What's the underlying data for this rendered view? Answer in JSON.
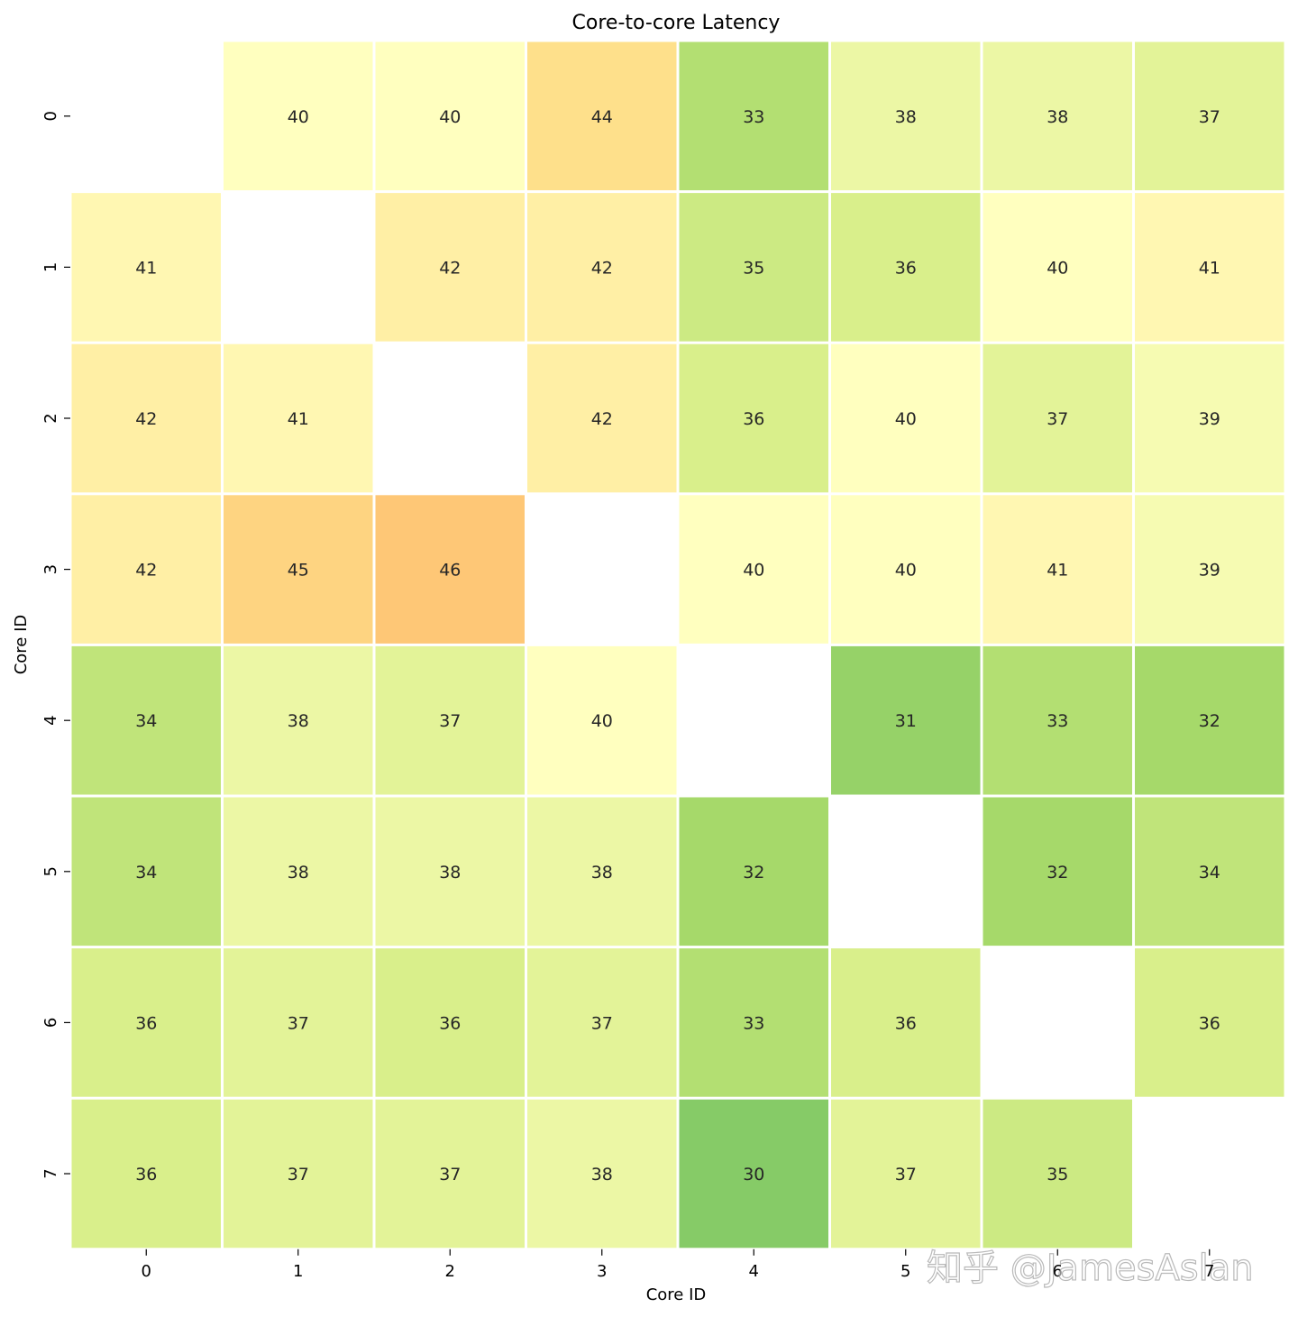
{
  "chart_data": {
    "type": "heatmap",
    "title": "Core-to-core Latency",
    "xlabel": "Core ID",
    "ylabel": "Core ID",
    "x_categories": [
      "0",
      "1",
      "2",
      "3",
      "4",
      "5",
      "6",
      "7"
    ],
    "y_categories": [
      "0",
      "1",
      "2",
      "3",
      "4",
      "5",
      "6",
      "7"
    ],
    "values": [
      [
        null,
        40,
        40,
        44,
        33,
        38,
        38,
        37
      ],
      [
        41,
        null,
        42,
        42,
        35,
        36,
        40,
        41
      ],
      [
        42,
        41,
        null,
        42,
        36,
        40,
        37,
        39
      ],
      [
        42,
        45,
        46,
        null,
        40,
        40,
        41,
        39
      ],
      [
        34,
        38,
        37,
        40,
        null,
        31,
        33,
        32
      ],
      [
        34,
        38,
        38,
        38,
        32,
        null,
        32,
        34
      ],
      [
        36,
        37,
        36,
        37,
        33,
        36,
        null,
        36
      ],
      [
        36,
        37,
        37,
        38,
        30,
        37,
        35,
        null
      ]
    ],
    "colormap": "RdYlGn_r",
    "color_range": [
      20,
      60
    ],
    "annotated": true,
    "colorbar": false
  },
  "watermark": "知乎 @JamesAslan"
}
